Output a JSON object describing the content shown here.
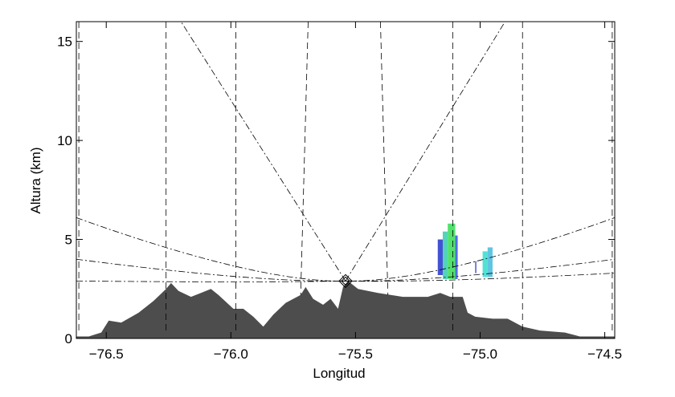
{
  "chart_data": {
    "type": "area",
    "title": "",
    "xlabel": "Longitud",
    "ylabel": "Altura (km)",
    "xlim": [
      -76.62,
      -74.46
    ],
    "ylim": [
      0,
      16
    ],
    "xticks": [
      -76.5,
      -76.0,
      -75.5,
      -75.0,
      -74.5
    ],
    "xtick_labels": [
      "−76.5",
      "−76.0",
      "−75.5",
      "−75.0",
      "−74.5"
    ],
    "yticks": [
      0,
      5,
      10,
      15
    ],
    "ytick_labels": [
      "0",
      "5",
      "10",
      "15"
    ],
    "grid": false,
    "terrain_color": "#4d4d4d",
    "terrain": [
      [
        -76.62,
        0.1
      ],
      [
        -76.57,
        0.1
      ],
      [
        -76.52,
        0.3
      ],
      [
        -76.49,
        0.9
      ],
      [
        -76.44,
        0.8
      ],
      [
        -76.37,
        1.3
      ],
      [
        -76.31,
        1.9
      ],
      [
        -76.26,
        2.5
      ],
      [
        -76.24,
        2.8
      ],
      [
        -76.21,
        2.4
      ],
      [
        -76.16,
        2.1
      ],
      [
        -76.12,
        2.3
      ],
      [
        -76.08,
        2.5
      ],
      [
        -76.05,
        2.2
      ],
      [
        -75.99,
        1.5
      ],
      [
        -75.95,
        1.5
      ],
      [
        -75.91,
        1.1
      ],
      [
        -75.87,
        0.6
      ],
      [
        -75.83,
        1.2
      ],
      [
        -75.78,
        1.8
      ],
      [
        -75.72,
        2.2
      ],
      [
        -75.7,
        2.6
      ],
      [
        -75.67,
        2.0
      ],
      [
        -75.63,
        1.7
      ],
      [
        -75.6,
        2.0
      ],
      [
        -75.57,
        1.5
      ],
      [
        -75.55,
        2.6
      ],
      [
        -75.53,
        2.9
      ],
      [
        -75.49,
        2.5
      ],
      [
        -75.41,
        2.3
      ],
      [
        -75.31,
        2.1
      ],
      [
        -75.21,
        2.1
      ],
      [
        -75.16,
        2.3
      ],
      [
        -75.12,
        2.1
      ],
      [
        -75.07,
        2.1
      ],
      [
        -75.05,
        1.3
      ],
      [
        -75.02,
        1.1
      ],
      [
        -74.95,
        1.0
      ],
      [
        -74.89,
        1.0
      ],
      [
        -74.83,
        0.6
      ],
      [
        -74.76,
        0.4
      ],
      [
        -74.66,
        0.3
      ],
      [
        -74.6,
        0.1
      ],
      [
        -74.46,
        0.1
      ]
    ],
    "radar": {
      "lon": -75.54,
      "alt": 2.9,
      "symbol": "diamond"
    },
    "vertical_dashed": [
      -76.26,
      -75.98,
      -75.11,
      -74.83,
      -76.61,
      -74.47
    ],
    "slanted_dashed": [
      [
        [
          -75.69,
          16
        ],
        [
          -75.72,
          2.2
        ]
      ],
      [
        [
          -75.4,
          16
        ],
        [
          -75.37,
          2.2
        ]
      ]
    ],
    "beam_lines": [
      [
        [
          -75.54,
          2.9
        ],
        [
          -76.2,
          16
        ]
      ],
      [
        [
          -75.54,
          2.9
        ],
        [
          -74.9,
          16
        ]
      ]
    ],
    "beam_curves": [
      {
        "left_alt": 6.1,
        "right_alt": 6.1
      },
      {
        "left_alt": 4.0,
        "right_alt": 4.0
      },
      {
        "left_alt": 2.9,
        "right_alt": 3.3
      }
    ],
    "echoes": [
      {
        "lon": [
          -75.17,
          -75.15
        ],
        "alt": [
          3.2,
          5.0
        ],
        "color": "#2233cc"
      },
      {
        "lon": [
          -75.15,
          -75.13
        ],
        "alt": [
          3.0,
          5.4
        ],
        "color": "#33ccaa"
      },
      {
        "lon": [
          -75.13,
          -75.1
        ],
        "alt": [
          3.0,
          5.8
        ],
        "color": "#33dd55"
      },
      {
        "lon": [
          -75.1,
          -75.09
        ],
        "alt": [
          3.0,
          5.2
        ],
        "color": "#3355dd"
      },
      {
        "lon": [
          -75.02,
          -75.015
        ],
        "alt": [
          3.3,
          3.9
        ],
        "color": "#3344cc"
      },
      {
        "lon": [
          -74.99,
          -74.97
        ],
        "alt": [
          3.1,
          4.4
        ],
        "color": "#33ddcc"
      },
      {
        "lon": [
          -74.97,
          -74.95
        ],
        "alt": [
          3.1,
          4.6
        ],
        "color": "#44bbdd"
      }
    ]
  }
}
